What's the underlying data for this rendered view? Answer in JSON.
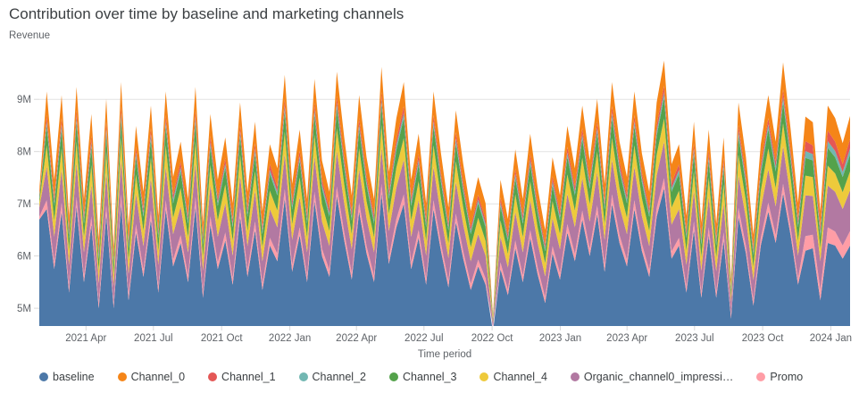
{
  "header": {
    "title": "Contribution over time by baseline and marketing channels"
  },
  "chart_data": {
    "type": "area",
    "stacked": true,
    "grid": true,
    "legend_position": "bottom",
    "y_axis": {
      "title": "Revenue",
      "ylim": [
        4.66,
        9.79
      ],
      "ticks": [
        {
          "label": "5M",
          "v": 5
        },
        {
          "label": "6M",
          "v": 6
        },
        {
          "label": "7M",
          "v": 7
        },
        {
          "label": "8M",
          "v": 8
        },
        {
          "label": "9M",
          "v": 9
        }
      ]
    },
    "x_axis": {
      "title": "Time period",
      "ticks": [
        {
          "label": "2021 Apr",
          "f": 0.0576
        },
        {
          "label": "2021 Jul",
          "f": 0.1408
        },
        {
          "label": "2021 Oct",
          "f": 0.2249
        },
        {
          "label": "2022 Jan",
          "f": 0.309
        },
        {
          "label": "2022 Apr",
          "f": 0.3912
        },
        {
          "label": "2022 Jul",
          "f": 0.4744
        },
        {
          "label": "2022 Oct",
          "f": 0.5585
        },
        {
          "label": "2023 Jan",
          "f": 0.6426
        },
        {
          "label": "2023 Apr",
          "f": 0.7249
        },
        {
          "label": "2023 Jul",
          "f": 0.8081
        },
        {
          "label": "2023 Oct",
          "f": 0.8922
        },
        {
          "label": "2024 Jan",
          "f": 0.9762
        }
      ]
    },
    "stack_order": [
      "baseline",
      "Promo",
      "Organic_channel0_impressi…",
      "Channel_4",
      "Channel_3",
      "Channel_2",
      "Channel_1",
      "Channel_0"
    ],
    "series": [
      {
        "name": "baseline",
        "color": "#4C78A8",
        "values": [
          6.7,
          6.9,
          5.75,
          6.85,
          5.3,
          6.95,
          5.5,
          6.6,
          5.0,
          6.8,
          5.0,
          7.0,
          5.15,
          6.45,
          5.6,
          6.7,
          5.3,
          6.9,
          5.8,
          6.25,
          5.5,
          6.95,
          5.2,
          6.6,
          5.75,
          6.3,
          5.45,
          6.75,
          5.6,
          6.5,
          5.35,
          6.2,
          5.9,
          7.1,
          5.7,
          6.4,
          5.5,
          7.05,
          6.0,
          5.6,
          7.15,
          6.3,
          5.55,
          6.85,
          6.05,
          5.5,
          7.2,
          5.85,
          6.55,
          7.0,
          5.75,
          6.35,
          5.45,
          6.9,
          6.1,
          5.4,
          6.65,
          5.95,
          5.35,
          5.8,
          5.45,
          4.55,
          5.75,
          5.25,
          6.15,
          5.5,
          6.35,
          5.65,
          5.1,
          6.05,
          5.55,
          6.45,
          5.9,
          6.7,
          6.0,
          6.8,
          5.7,
          7.0,
          6.25,
          5.8,
          6.9,
          6.1,
          5.6,
          6.75,
          7.3,
          5.95,
          6.2,
          5.3,
          6.5,
          5.2,
          6.4,
          5.2,
          6.3,
          4.8,
          6.75,
          6.05,
          5.05,
          6.2,
          6.85,
          6.25,
          7.2,
          6.4,
          5.45,
          6.1,
          6.15,
          5.15,
          6.25,
          6.2,
          5.95,
          6.2
        ]
      },
      {
        "name": "Channel_0",
        "color": "#F58518",
        "values": [
          0.11,
          0.45,
          0.34,
          0.44,
          0.29,
          0.45,
          0.31,
          0.42,
          0.26,
          0.44,
          0.23,
          0.46,
          0.28,
          0.4,
          0.32,
          0.43,
          0.29,
          0.45,
          0.34,
          0.38,
          0.31,
          0.45,
          0.28,
          0.42,
          0.34,
          0.39,
          0.31,
          0.43,
          0.32,
          0.41,
          0.3,
          0.38,
          0.35,
          0.47,
          0.33,
          0.4,
          0.31,
          0.46,
          0.36,
          0.32,
          0.47,
          0.39,
          0.32,
          0.44,
          0.36,
          0.31,
          0.48,
          0.35,
          0.41,
          0.46,
          0.34,
          0.39,
          0.31,
          0.45,
          0.37,
          0.3,
          0.42,
          0.36,
          0.3,
          0.34,
          0.31,
          0.05,
          0.34,
          0.29,
          0.37,
          0.31,
          0.39,
          0.33,
          0.27,
          0.36,
          0.32,
          0.4,
          0.35,
          0.43,
          0.36,
          0.44,
          0.33,
          0.46,
          0.38,
          0.34,
          0.45,
          0.37,
          0.32,
          0.43,
          0.48,
          0.36,
          0.38,
          0.29,
          0.41,
          0.28,
          0.4,
          0.28,
          0.39,
          0.13,
          0.43,
          0.36,
          0.27,
          0.38,
          0.44,
          0.38,
          0.52,
          0.4,
          0.31,
          0.47,
          0.44,
          0.3,
          0.48,
          0.45,
          0.4,
          0.44
        ]
      },
      {
        "name": "Channel_1",
        "color": "#E45756",
        "values": [
          0.03,
          0.12,
          0.09,
          0.12,
          0.08,
          0.13,
          0.09,
          0.12,
          0.07,
          0.12,
          0.06,
          0.13,
          0.08,
          0.11,
          0.09,
          0.12,
          0.08,
          0.12,
          0.09,
          0.11,
          0.09,
          0.13,
          0.08,
          0.12,
          0.09,
          0.11,
          0.09,
          0.12,
          0.09,
          0.11,
          0.08,
          0.11,
          0.1,
          0.13,
          0.09,
          0.11,
          0.09,
          0.13,
          0.1,
          0.09,
          0.13,
          0.11,
          0.09,
          0.12,
          0.1,
          0.09,
          0.13,
          0.1,
          0.11,
          0.13,
          0.09,
          0.11,
          0.09,
          0.12,
          0.1,
          0.08,
          0.12,
          0.1,
          0.08,
          0.09,
          0.09,
          0.01,
          0.09,
          0.08,
          0.1,
          0.09,
          0.11,
          0.09,
          0.08,
          0.1,
          0.09,
          0.11,
          0.1,
          0.12,
          0.1,
          0.12,
          0.09,
          0.13,
          0.11,
          0.09,
          0.12,
          0.1,
          0.09,
          0.12,
          0.13,
          0.1,
          0.11,
          0.08,
          0.11,
          0.08,
          0.11,
          0.08,
          0.11,
          0.04,
          0.12,
          0.1,
          0.07,
          0.11,
          0.12,
          0.11,
          0.14,
          0.11,
          0.09,
          0.19,
          0.17,
          0.11,
          0.2,
          0.18,
          0.15,
          0.18
        ]
      },
      {
        "name": "Channel_2",
        "color": "#72B7B2",
        "values": [
          0.02,
          0.09,
          0.07,
          0.09,
          0.06,
          0.09,
          0.07,
          0.09,
          0.06,
          0.09,
          0.05,
          0.1,
          0.06,
          0.08,
          0.07,
          0.09,
          0.06,
          0.09,
          0.07,
          0.08,
          0.07,
          0.09,
          0.06,
          0.09,
          0.07,
          0.08,
          0.06,
          0.09,
          0.07,
          0.09,
          0.06,
          0.08,
          0.07,
          0.1,
          0.07,
          0.08,
          0.07,
          0.1,
          0.08,
          0.07,
          0.1,
          0.08,
          0.07,
          0.09,
          0.08,
          0.07,
          0.1,
          0.07,
          0.09,
          0.1,
          0.07,
          0.08,
          0.06,
          0.09,
          0.08,
          0.06,
          0.09,
          0.07,
          0.06,
          0.07,
          0.06,
          0.01,
          0.07,
          0.06,
          0.08,
          0.07,
          0.08,
          0.07,
          0.06,
          0.08,
          0.07,
          0.08,
          0.07,
          0.09,
          0.08,
          0.09,
          0.07,
          0.1,
          0.08,
          0.07,
          0.09,
          0.08,
          0.07,
          0.09,
          0.1,
          0.07,
          0.08,
          0.06,
          0.09,
          0.06,
          0.08,
          0.06,
          0.08,
          0.03,
          0.09,
          0.08,
          0.06,
          0.08,
          0.09,
          0.08,
          0.11,
          0.09,
          0.07,
          0.13,
          0.12,
          0.08,
          0.13,
          0.12,
          0.1,
          0.12
        ]
      },
      {
        "name": "Channel_3",
        "color": "#54A24B",
        "values": [
          0.08,
          0.37,
          0.28,
          0.37,
          0.24,
          0.38,
          0.26,
          0.35,
          0.22,
          0.36,
          0.19,
          0.38,
          0.23,
          0.34,
          0.27,
          0.36,
          0.24,
          0.37,
          0.28,
          0.32,
          0.26,
          0.38,
          0.24,
          0.35,
          0.28,
          0.32,
          0.26,
          0.36,
          0.27,
          0.34,
          0.25,
          0.32,
          0.29,
          0.39,
          0.28,
          0.33,
          0.26,
          0.38,
          0.3,
          0.27,
          0.39,
          0.32,
          0.26,
          0.37,
          0.3,
          0.26,
          0.4,
          0.29,
          0.34,
          0.38,
          0.28,
          0.33,
          0.26,
          0.37,
          0.31,
          0.25,
          0.35,
          0.3,
          0.25,
          0.28,
          0.26,
          0.04,
          0.28,
          0.24,
          0.31,
          0.26,
          0.33,
          0.27,
          0.23,
          0.3,
          0.26,
          0.34,
          0.29,
          0.36,
          0.3,
          0.36,
          0.28,
          0.38,
          0.32,
          0.28,
          0.37,
          0.31,
          0.27,
          0.36,
          0.4,
          0.3,
          0.32,
          0.24,
          0.34,
          0.24,
          0.33,
          0.23,
          0.32,
          0.11,
          0.36,
          0.3,
          0.22,
          0.32,
          0.37,
          0.32,
          0.4,
          0.33,
          0.26,
          0.34,
          0.32,
          0.22,
          0.34,
          0.31,
          0.29,
          0.32
        ]
      },
      {
        "name": "Channel_4",
        "color": "#EECA3B",
        "values": [
          0.09,
          0.41,
          0.31,
          0.4,
          0.27,
          0.41,
          0.29,
          0.38,
          0.24,
          0.4,
          0.21,
          0.42,
          0.26,
          0.37,
          0.29,
          0.39,
          0.27,
          0.41,
          0.31,
          0.35,
          0.29,
          0.41,
          0.26,
          0.38,
          0.31,
          0.36,
          0.28,
          0.4,
          0.29,
          0.37,
          0.27,
          0.35,
          0.32,
          0.43,
          0.3,
          0.37,
          0.29,
          0.42,
          0.33,
          0.29,
          0.43,
          0.36,
          0.29,
          0.4,
          0.33,
          0.29,
          0.44,
          0.32,
          0.38,
          0.42,
          0.31,
          0.36,
          0.28,
          0.41,
          0.34,
          0.28,
          0.39,
          0.33,
          0.27,
          0.31,
          0.28,
          0.04,
          0.31,
          0.26,
          0.34,
          0.29,
          0.36,
          0.3,
          0.25,
          0.33,
          0.29,
          0.37,
          0.32,
          0.39,
          0.33,
          0.4,
          0.3,
          0.42,
          0.35,
          0.31,
          0.41,
          0.34,
          0.29,
          0.4,
          0.44,
          0.33,
          0.35,
          0.27,
          0.37,
          0.26,
          0.37,
          0.26,
          0.36,
          0.12,
          0.4,
          0.33,
          0.25,
          0.35,
          0.4,
          0.35,
          0.44,
          0.37,
          0.28,
          0.38,
          0.36,
          0.25,
          0.38,
          0.35,
          0.32,
          0.36
        ]
      },
      {
        "name": "Organic_channel0_impressi…",
        "color": "#B279A2",
        "values": [
          0.18,
          0.64,
          0.49,
          0.64,
          0.42,
          0.65,
          0.45,
          0.6,
          0.38,
          0.63,
          0.34,
          0.66,
          0.4,
          0.58,
          0.46,
          0.62,
          0.42,
          0.64,
          0.49,
          0.55,
          0.45,
          0.65,
          0.41,
          0.6,
          0.49,
          0.56,
          0.44,
          0.62,
          0.46,
          0.59,
          0.43,
          0.55,
          0.51,
          0.67,
          0.48,
          0.58,
          0.45,
          0.67,
          0.52,
          0.46,
          0.68,
          0.56,
          0.46,
          0.64,
          0.53,
          0.45,
          0.69,
          0.5,
          0.6,
          0.66,
          0.49,
          0.57,
          0.44,
          0.64,
          0.53,
          0.44,
          0.61,
          0.51,
          0.43,
          0.49,
          0.44,
          0.12,
          0.49,
          0.42,
          0.54,
          0.45,
          0.57,
          0.47,
          0.4,
          0.53,
          0.46,
          0.58,
          0.51,
          0.62,
          0.52,
          0.63,
          0.48,
          0.66,
          0.55,
          0.49,
          0.64,
          0.53,
          0.46,
          0.62,
          0.7,
          0.51,
          0.55,
          0.42,
          0.59,
          0.41,
          0.58,
          0.4,
          0.56,
          0.25,
          0.62,
          0.53,
          0.39,
          0.55,
          0.64,
          0.55,
          0.72,
          0.58,
          0.44,
          0.78,
          0.74,
          0.55,
          0.8,
          0.76,
          0.7,
          0.78
        ]
      },
      {
        "name": "Promo",
        "color": "#FF9DA6",
        "values": [
          0.05,
          0.17,
          0.13,
          0.17,
          0.11,
          0.18,
          0.12,
          0.16,
          0.1,
          0.17,
          0.09,
          0.18,
          0.11,
          0.16,
          0.13,
          0.17,
          0.11,
          0.17,
          0.13,
          0.15,
          0.12,
          0.18,
          0.11,
          0.16,
          0.13,
          0.15,
          0.12,
          0.17,
          0.13,
          0.16,
          0.12,
          0.15,
          0.14,
          0.18,
          0.13,
          0.15,
          0.12,
          0.18,
          0.14,
          0.13,
          0.18,
          0.15,
          0.12,
          0.17,
          0.14,
          0.12,
          0.18,
          0.13,
          0.16,
          0.18,
          0.13,
          0.15,
          0.12,
          0.17,
          0.14,
          0.12,
          0.16,
          0.14,
          0.12,
          0.13,
          0.12,
          0.05,
          0.13,
          0.11,
          0.15,
          0.12,
          0.15,
          0.13,
          0.11,
          0.14,
          0.12,
          0.16,
          0.14,
          0.17,
          0.14,
          0.17,
          0.13,
          0.18,
          0.15,
          0.13,
          0.17,
          0.14,
          0.13,
          0.17,
          0.19,
          0.14,
          0.15,
          0.11,
          0.16,
          0.11,
          0.15,
          0.11,
          0.15,
          0.08,
          0.17,
          0.14,
          0.1,
          0.15,
          0.17,
          0.15,
          0.18,
          0.15,
          0.12,
          0.28,
          0.26,
          0.2,
          0.3,
          0.27,
          0.25,
          0.28
        ]
      }
    ]
  }
}
